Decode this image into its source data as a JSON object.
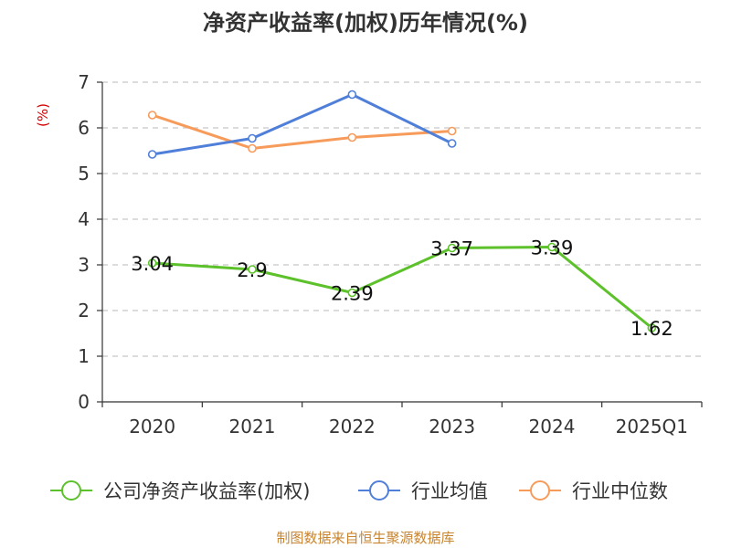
{
  "chart_data": {
    "type": "line",
    "title": "净资产收益率(加权)历年情况(%)",
    "ylabel": "(%)",
    "xlabel": "",
    "categories": [
      "2020",
      "2021",
      "2022",
      "2023",
      "2024",
      "2025Q1"
    ],
    "ylim": [
      0,
      7
    ],
    "yticks": [
      0,
      1,
      2,
      3,
      4,
      5,
      6,
      7
    ],
    "grid": true,
    "legend_position": "bottom",
    "series": [
      {
        "name": "公司净资产收益率(加权)",
        "color": "#5cc12a",
        "values": [
          3.04,
          2.9,
          2.39,
          3.37,
          3.39,
          1.62
        ],
        "labels": [
          "3.04",
          "2.9",
          "2.39",
          "3.37",
          "3.39",
          "1.62"
        ],
        "show_labels": true
      },
      {
        "name": "行业均值",
        "color": "#4f7fd8",
        "values": [
          5.42,
          5.77,
          6.73,
          5.66,
          null,
          null
        ],
        "show_labels": false
      },
      {
        "name": "行业中位数",
        "color": "#f79b5b",
        "values": [
          6.28,
          5.55,
          5.79,
          5.93,
          null,
          null
        ],
        "show_labels": false
      }
    ]
  },
  "footer": {
    "source": "制图数据来自恒生聚源数据库"
  }
}
